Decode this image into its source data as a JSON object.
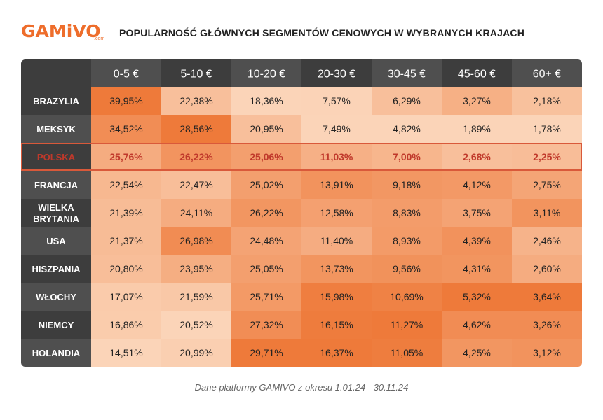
{
  "header": {
    "logo_text": "GAMiVO",
    "logo_suffix": ".com",
    "title": "POPULARNOŚĆ GŁÓWNYCH SEGMENTÓW CENOWYCH W WYBRANYCH KRAJACH"
  },
  "footer": {
    "note": "Dane platformy GAMIVO z okresu 1.01.24 - 30.11.24"
  },
  "colors": {
    "brand": "#ee6d2b",
    "header_dark": "#3d3d3d",
    "header_mid": "#4f4f4f",
    "highlight_border": "#d9593a",
    "highlight_text": "#c0392b",
    "scale_low": "#fbd4b8",
    "scale_high": "#ee7a3a"
  },
  "chart_data": {
    "type": "heatmap",
    "title": "POPULARNOŚĆ GŁÓWNYCH SEGMENTÓW CENOWYCH W WYBRANYCH KRAJACH",
    "columns": [
      "0-5 €",
      "5-10 €",
      "10-20 €",
      "20-30 €",
      "30-45 €",
      "45-60 €",
      "60+ €"
    ],
    "rows": [
      "BRAZYLIA",
      "MEKSYK",
      "POLSKA",
      "FRANCJA",
      "WIELKA BRYTANIA",
      "USA",
      "HISZPANIA",
      "WŁOCHY",
      "NIEMCY",
      "HOLANDIA"
    ],
    "highlight_row": "POLSKA",
    "labels": [
      [
        "39,95%",
        "22,38%",
        "18,36%",
        "7,57%",
        "6,29%",
        "3,27%",
        "2,18%"
      ],
      [
        "34,52%",
        "28,56%",
        "20,95%",
        "7,49%",
        "4,82%",
        "1,89%",
        "1,78%"
      ],
      [
        "25,76%",
        "26,22%",
        "25,06%",
        "11,03%",
        "7,00%",
        "2,68%",
        "2,25%"
      ],
      [
        "22,54%",
        "22,47%",
        "25,02%",
        "13,91%",
        "9,18%",
        "4,12%",
        "2,75%"
      ],
      [
        "21,39%",
        "24,11%",
        "26,22%",
        "12,58%",
        "8,83%",
        "3,75%",
        "3,11%"
      ],
      [
        "21,37%",
        "26,98%",
        "24,48%",
        "11,40%",
        "8,93%",
        "4,39%",
        "2,46%"
      ],
      [
        "20,80%",
        "23,95%",
        "25,05%",
        "13,73%",
        "9,56%",
        "4,31%",
        "2,60%"
      ],
      [
        "17,07%",
        "21,59%",
        "25,71%",
        "15,98%",
        "10,69%",
        "5,32%",
        "3,64%"
      ],
      [
        "16,86%",
        "20,52%",
        "27,32%",
        "16,15%",
        "11,27%",
        "4,62%",
        "3,26%"
      ],
      [
        "14,51%",
        "20,99%",
        "29,71%",
        "16,37%",
        "11,05%",
        "4,25%",
        "3,12%"
      ]
    ],
    "values": [
      [
        39.95,
        22.38,
        18.36,
        7.57,
        6.29,
        3.27,
        2.18
      ],
      [
        34.52,
        28.56,
        20.95,
        7.49,
        4.82,
        1.89,
        1.78
      ],
      [
        25.76,
        26.22,
        25.06,
        11.03,
        7.0,
        2.68,
        2.25
      ],
      [
        22.54,
        22.47,
        25.02,
        13.91,
        9.18,
        4.12,
        2.75
      ],
      [
        21.39,
        24.11,
        26.22,
        12.58,
        8.83,
        3.75,
        3.11
      ],
      [
        21.37,
        26.98,
        24.48,
        11.4,
        8.93,
        4.39,
        2.46
      ],
      [
        20.8,
        23.95,
        25.05,
        13.73,
        9.56,
        4.31,
        2.6
      ],
      [
        17.07,
        21.59,
        25.71,
        15.98,
        10.69,
        5.32,
        3.64
      ],
      [
        16.86,
        20.52,
        27.32,
        16.15,
        11.27,
        4.62,
        3.26
      ],
      [
        14.51,
        20.99,
        29.71,
        16.37,
        11.05,
        4.25,
        3.12
      ]
    ]
  }
}
